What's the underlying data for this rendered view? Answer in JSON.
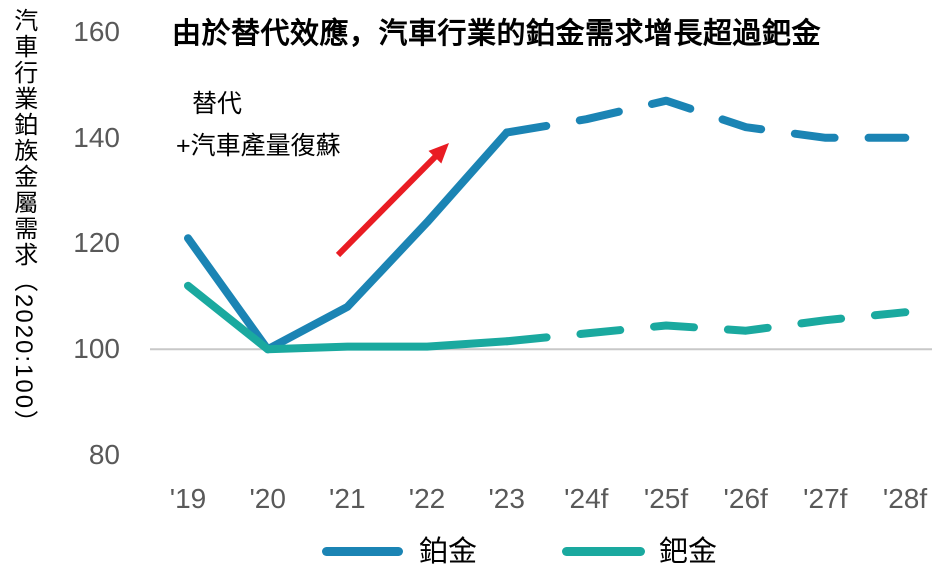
{
  "chart": {
    "title": "由於替代效應，汽車行業的鉑金需求增長超過鈀金",
    "y_axis_title": "汽車行業鉑族金屬需求（2020:100）"
  },
  "chart_data": {
    "type": "line",
    "title": "由於替代效應，汽車行業的鉑金需求增長超過鈀金",
    "xlabel": "",
    "ylabel": "汽車行業鉑族金屬需求（2020:100）",
    "categories": [
      "'19",
      "'20",
      "'21",
      "'22",
      "'23",
      "'24f",
      "'25f",
      "'26f",
      "'27f",
      "'28f"
    ],
    "series": [
      {
        "name": "鉑金",
        "color": "#1b84b4",
        "values": [
          121,
          100,
          108,
          124,
          141,
          143.5,
          147,
          142,
          140,
          140
        ],
        "solid_until_index": 4,
        "forecast_style": "dashed"
      },
      {
        "name": "鈀金",
        "color": "#1aa99f",
        "values": [
          112,
          100,
          100.5,
          100.5,
          101.5,
          103,
          104.5,
          103.5,
          105.5,
          107
        ],
        "solid_until_index": 4,
        "forecast_style": "dashed"
      }
    ],
    "ylim": [
      80,
      160
    ],
    "yticks": [
      160,
      140,
      120,
      100,
      80
    ],
    "grid": "single horizontal gridline at y=100",
    "gridline_value": 100,
    "legend_position": "bottom",
    "annotations": {
      "text_lines": [
        "替代",
        "+汽車產量復蘇"
      ],
      "arrow": {
        "type": "arrow",
        "direction": "up-right",
        "color": "#e91c23"
      }
    },
    "colors": {
      "platinum_line": "#1b84b4",
      "palladium_line": "#1aa99f",
      "arrow_red": "#e91c23",
      "axis_text": "#595959",
      "gridline": "#c8c8c8",
      "title_text": "#000000"
    }
  }
}
